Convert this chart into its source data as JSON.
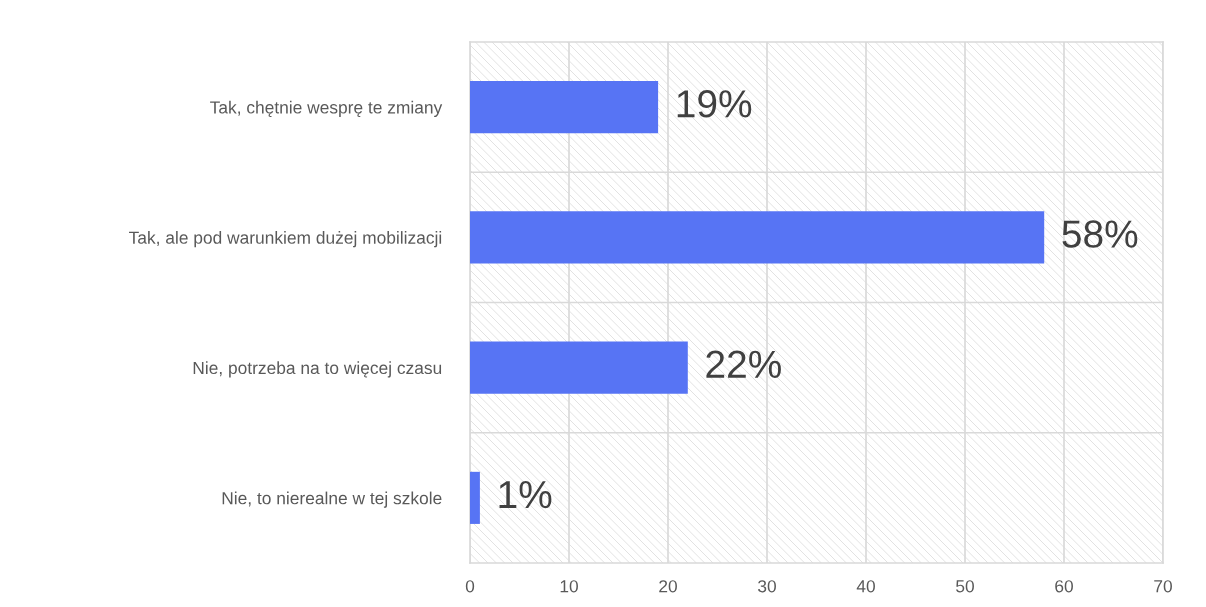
{
  "chart_data": {
    "type": "bar",
    "orientation": "horizontal",
    "categories": [
      "Tak, chętnie wesprę te zmiany",
      "Tak, ale pod warunkiem dużej mobilizacji",
      "Nie, potrzeba na to więcej czasu",
      "Nie, to nierealne w tej szkole"
    ],
    "values": [
      19,
      58,
      22,
      1
    ],
    "color": "#5774f4",
    "value_labels": [
      "19%",
      "58%",
      "22%",
      "1%"
    ],
    "xlim": [
      0,
      70
    ],
    "xticks": [
      0,
      10,
      20,
      30,
      40,
      50,
      60,
      70
    ],
    "grid": true,
    "legend": false
  }
}
